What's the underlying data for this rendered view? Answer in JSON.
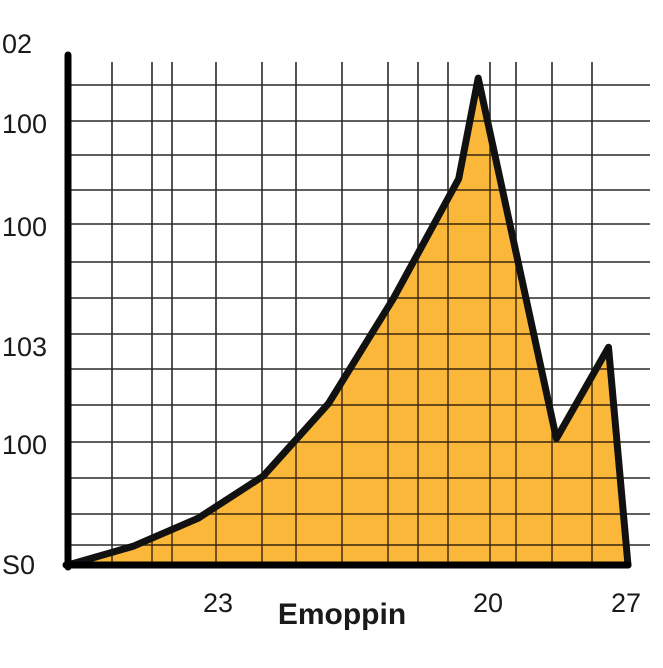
{
  "chart_data": {
    "type": "area",
    "title": "",
    "xlabel": "Emoppin",
    "ylabel": "",
    "y_tick_labels": [
      "S0",
      "100",
      "103",
      "100",
      "100",
      "02"
    ],
    "x_tick_labels": [
      "23",
      "20",
      "27"
    ],
    "grid": true,
    "fill_color": "#FBB22A",
    "line_color": "#111111",
    "grid_color": "#2a2a2a",
    "series": [
      {
        "values": [
          [
            0.0,
            0.0
          ],
          [
            1.0,
            0.8
          ],
          [
            2.0,
            2.0
          ],
          [
            3.0,
            3.8
          ],
          [
            4.0,
            6.9
          ],
          [
            5.0,
            11.4
          ],
          [
            6.0,
            16.5
          ],
          [
            6.3,
            20.8
          ],
          [
            7.5,
            5.4
          ],
          [
            8.3,
            9.3
          ],
          [
            8.6,
            0.0
          ]
        ]
      }
    ],
    "xlim": [
      0,
      8.6
    ],
    "ylim": [
      0,
      22
    ]
  }
}
